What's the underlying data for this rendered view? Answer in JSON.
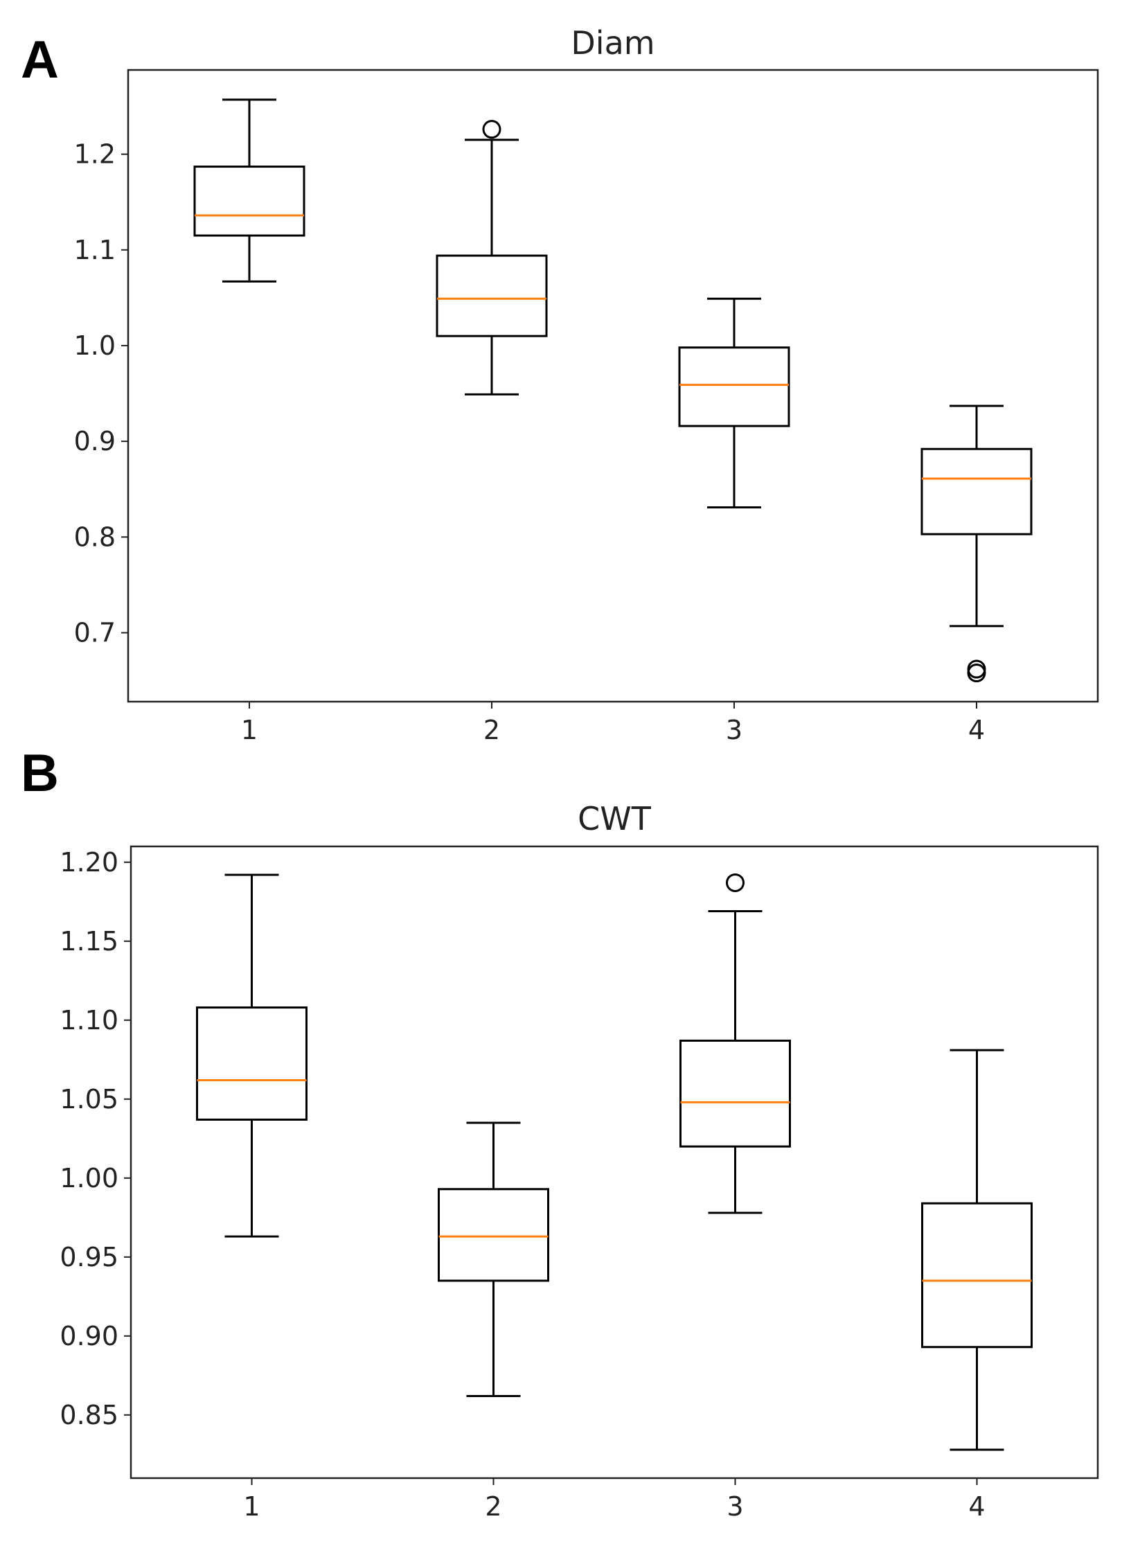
{
  "chart_data": [
    {
      "type": "boxplot",
      "panel_label": "A",
      "title": "Diam",
      "xlabel": "",
      "ylabel": "",
      "categories": [
        "1",
        "2",
        "3",
        "4"
      ],
      "ylim": [
        0.628,
        1.288
      ],
      "yticks": [
        0.7,
        0.8,
        0.9,
        1.0,
        1.1,
        1.2
      ],
      "ytick_labels": [
        "0.7",
        "0.8",
        "0.9",
        "1.0",
        "1.1",
        "1.2"
      ],
      "boxes": [
        {
          "whislo": 1.067,
          "q1": 1.115,
          "med": 1.136,
          "q3": 1.187,
          "whishi": 1.257,
          "fliers": []
        },
        {
          "whislo": 0.949,
          "q1": 1.01,
          "med": 1.049,
          "q3": 1.094,
          "whishi": 1.215,
          "fliers": [
            1.226
          ]
        },
        {
          "whislo": 0.831,
          "q1": 0.916,
          "med": 0.959,
          "q3": 0.998,
          "whishi": 1.049,
          "fliers": []
        },
        {
          "whislo": 0.707,
          "q1": 0.803,
          "med": 0.861,
          "q3": 0.892,
          "whishi": 0.937,
          "fliers": [
            0.662,
            0.658
          ]
        }
      ]
    },
    {
      "type": "boxplot",
      "panel_label": "B",
      "title": "CWT",
      "xlabel": "",
      "ylabel": "",
      "categories": [
        "1",
        "2",
        "3",
        "4"
      ],
      "ylim": [
        0.81,
        1.21
      ],
      "yticks": [
        0.85,
        0.9,
        0.95,
        1.0,
        1.05,
        1.1,
        1.15,
        1.2
      ],
      "ytick_labels": [
        "0.85",
        "0.90",
        "0.95",
        "1.00",
        "1.05",
        "1.10",
        "1.15",
        "1.20"
      ],
      "boxes": [
        {
          "whislo": 0.963,
          "q1": 1.037,
          "med": 1.062,
          "q3": 1.108,
          "whishi": 1.192,
          "fliers": []
        },
        {
          "whislo": 0.862,
          "q1": 0.935,
          "med": 0.963,
          "q3": 0.993,
          "whishi": 1.035,
          "fliers": []
        },
        {
          "whislo": 0.978,
          "q1": 1.02,
          "med": 1.048,
          "q3": 1.087,
          "whishi": 1.169,
          "fliers": [
            1.187
          ]
        },
        {
          "whislo": 0.828,
          "q1": 0.893,
          "med": 0.935,
          "q3": 0.984,
          "whishi": 1.081,
          "fliers": []
        }
      ]
    }
  ],
  "colors": {
    "median": "#ff7f0e",
    "frame": "#222222",
    "box": "#000000"
  }
}
